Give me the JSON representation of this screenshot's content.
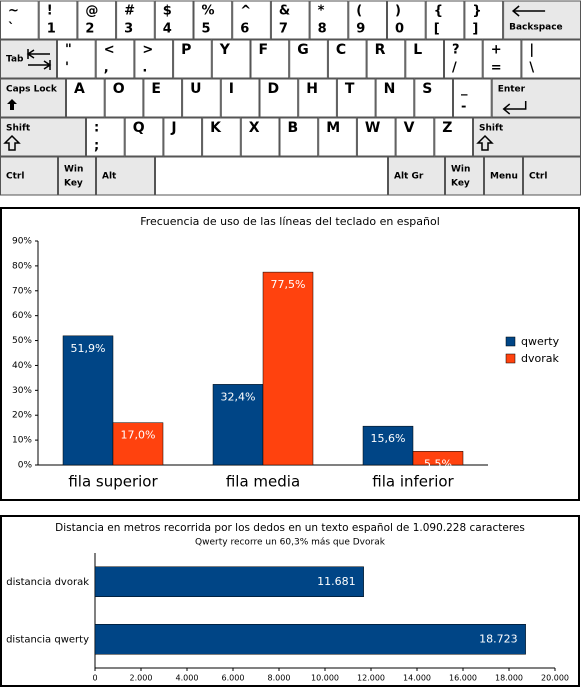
{
  "keyboard": {
    "rows": [
      [
        [
          "~",
          "`"
        ],
        [
          "!",
          "1"
        ],
        [
          "@",
          "2"
        ],
        [
          "#",
          "3"
        ],
        [
          "$",
          "4"
        ],
        [
          "%",
          "5"
        ],
        [
          "^",
          "6"
        ],
        [
          "&",
          "7"
        ],
        [
          "*",
          "8"
        ],
        [
          "(",
          "9"
        ],
        [
          ")",
          "0"
        ],
        [
          "{",
          "["
        ],
        [
          "}",
          "]"
        ],
        [
          "Backspace"
        ]
      ],
      [
        [
          "Tab"
        ],
        [
          "\"",
          "'"
        ],
        [
          "<",
          ","
        ],
        [
          ">",
          "."
        ],
        [
          "P"
        ],
        [
          "Y"
        ],
        [
          "F"
        ],
        [
          "G"
        ],
        [
          "C"
        ],
        [
          "R"
        ],
        [
          "L"
        ],
        [
          "?",
          "/"
        ],
        [
          "+",
          "="
        ],
        [
          "|",
          "\\"
        ]
      ],
      [
        [
          "Caps Lock"
        ],
        [
          "A"
        ],
        [
          "O"
        ],
        [
          "E"
        ],
        [
          "U"
        ],
        [
          "I"
        ],
        [
          "D"
        ],
        [
          "H"
        ],
        [
          "T"
        ],
        [
          "N"
        ],
        [
          "S"
        ],
        [
          "_",
          "-"
        ],
        [
          "Enter"
        ]
      ],
      [
        [
          "Shift"
        ],
        [
          ":",
          ";"
        ],
        [
          "Q"
        ],
        [
          "J"
        ],
        [
          "K"
        ],
        [
          "X"
        ],
        [
          "B"
        ],
        [
          "M"
        ],
        [
          "W"
        ],
        [
          "V"
        ],
        [
          "Z"
        ],
        [
          "Shift"
        ]
      ],
      [
        [
          "Ctrl"
        ],
        [
          "Win",
          "Key"
        ],
        [
          "Alt"
        ],
        [],
        [
          "Alt Gr"
        ],
        [
          "Win",
          "Key"
        ],
        [
          "Menu"
        ],
        [
          "Ctrl"
        ]
      ]
    ]
  },
  "chart_data": [
    {
      "type": "bar",
      "title": "Frecuencia de uso de las líneas del teclado en español",
      "categories": [
        "fila superior",
        "fila media",
        "fila inferior"
      ],
      "series": [
        {
          "name": "qwerty",
          "color": "#004586",
          "values": [
            51.9,
            32.4,
            15.6
          ],
          "value_labels": [
            "51,9%",
            "32,4%",
            "15,6%"
          ]
        },
        {
          "name": "dvorak",
          "color": "#ff420e",
          "values": [
            17.0,
            77.5,
            5.5
          ],
          "value_labels": [
            "17,0%",
            "77,5%",
            "5,5%"
          ]
        }
      ],
      "ylim": [
        0,
        90
      ],
      "yticks": [
        {
          "value": 0,
          "label": "0%"
        },
        {
          "value": 10,
          "label": "10%"
        },
        {
          "value": 20,
          "label": "20%"
        },
        {
          "value": 30,
          "label": "30%"
        },
        {
          "value": 40,
          "label": "40%"
        },
        {
          "value": 50,
          "label": "50%"
        },
        {
          "value": 60,
          "label": "60%"
        },
        {
          "value": 70,
          "label": "70%"
        },
        {
          "value": 80,
          "label": "80%"
        },
        {
          "value": 90,
          "label": "90%"
        }
      ],
      "legend": "right"
    },
    {
      "type": "barh",
      "title": "Distancia en metros recorrida por los dedos en un texto español de 1.090.228 caracteres",
      "subtitle": "Qwerty recorre un 60,3% más que Dvorak",
      "categories": [
        "distancia dvorak",
        "distancia qwerty"
      ],
      "values": [
        11681,
        18723
      ],
      "value_labels": [
        "11.681",
        "18.723"
      ],
      "color": "#004586",
      "xlim": [
        0,
        20000
      ],
      "xticks": [
        0,
        {
          "value": 2000,
          "label": "2.000"
        },
        {
          "value": 4000,
          "label": "4.000"
        },
        {
          "value": 6000,
          "label": "6.000"
        },
        {
          "value": 8000,
          "label": "8.000"
        },
        {
          "value": 10000,
          "label": "10.000"
        },
        {
          "value": 12000,
          "label": "12.000"
        },
        {
          "value": 14000,
          "label": "14.000"
        },
        {
          "value": 16000,
          "label": "16.000"
        },
        {
          "value": 18000,
          "label": "18.000"
        },
        {
          "value": 20000,
          "label": "20.000"
        }
      ]
    }
  ]
}
